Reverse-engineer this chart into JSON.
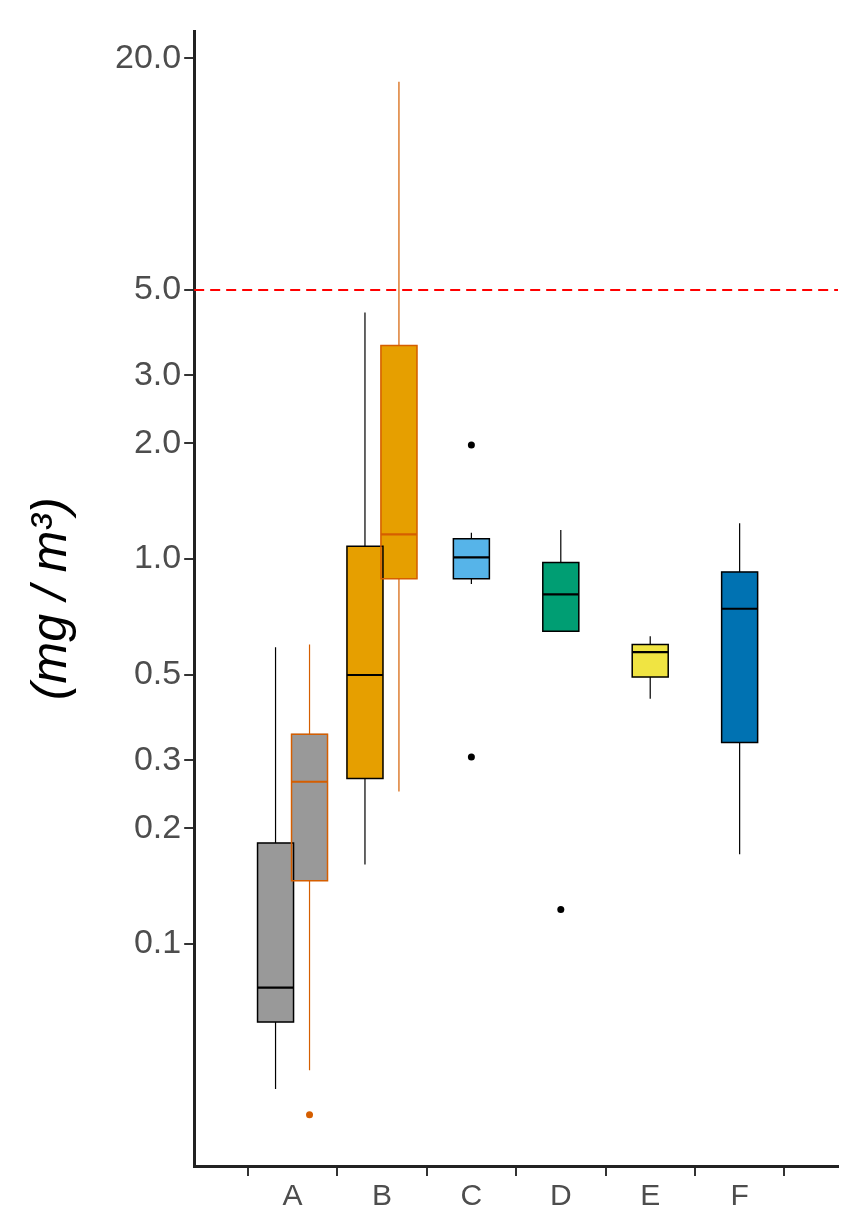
{
  "chart_data": {
    "type": "box",
    "ylabel": "(mg / m³)",
    "categories": [
      "A",
      "B",
      "C",
      "D",
      "E",
      "F"
    ],
    "log": true,
    "ylim": [
      0.0265,
      23.5
    ],
    "yticks": [
      {
        "value": 0.1,
        "label": "0.1"
      },
      {
        "value": 0.2,
        "label": "0.2"
      },
      {
        "value": 0.3,
        "label": "0.3"
      },
      {
        "value": 0.5,
        "label": "0.5"
      },
      {
        "value": 1,
        "label": "1.0"
      },
      {
        "value": 2,
        "label": "2.0"
      },
      {
        "value": 3,
        "label": "3.0"
      },
      {
        "value": 5,
        "label": "5.0"
      },
      {
        "value": 20,
        "label": "20.0"
      }
    ],
    "grid": false,
    "legend": false,
    "ref_lines": [
      {
        "axis": "y",
        "value": 5,
        "color": "#ff0000",
        "line_style": "dashed"
      }
    ],
    "series": [
      {
        "color": "#000000",
        "colors": [
          "#999999",
          "#e69f00",
          "#56b4e9",
          "#009e73",
          "#f0e442",
          "#0072b2"
        ],
        "boxes": [
          {
            "low": 0.042,
            "q1": 0.0627,
            "median": 0.077,
            "q3": 0.183,
            "high": 0.59
          },
          {
            "low": 0.161,
            "q1": 0.269,
            "median": 0.5,
            "q3": 1.08,
            "high": 4.37
          },
          {
            "low": 0.862,
            "q1": 0.889,
            "median": 1.01,
            "q3": 1.13,
            "high": 1.17,
            "outliers": [
              1.98,
              0.306
            ]
          },
          {
            "low": 0.65,
            "q1": 0.65,
            "median": 0.81,
            "q3": 0.98,
            "high": 1.19,
            "outliers": [
              0.123
            ]
          },
          {
            "low": 0.434,
            "q1": 0.494,
            "median": 0.573,
            "q3": 0.6,
            "high": 0.63
          },
          {
            "low": 0.171,
            "q1": 0.334,
            "median": 0.743,
            "q3": 0.926,
            "high": 1.24
          }
        ]
      },
      {
        "color": "#d55e00",
        "colors": [
          "#999999",
          "#e69f00",
          null,
          null,
          null,
          null
        ],
        "boxes": [
          {
            "low": 0.047,
            "q1": 0.146,
            "median": 0.264,
            "q3": 0.351,
            "high": 0.6,
            "outliers": [
              0.036
            ]
          },
          {
            "low": 0.249,
            "q1": 0.889,
            "median": 1.16,
            "q3": 3.59,
            "high": 17.4
          },
          null,
          null,
          null,
          null
        ]
      }
    ]
  }
}
